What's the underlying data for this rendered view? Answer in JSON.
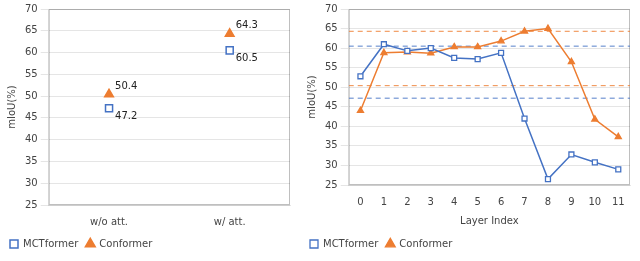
{
  "chart_data": [
    {
      "type": "scatter",
      "categories": [
        "w/o att.",
        "w/ att."
      ],
      "series": [
        {
          "name": "MCTformer",
          "color": "#4472c4",
          "marker": "open-square",
          "values": [
            47.2,
            60.5
          ]
        },
        {
          "name": "Conformer",
          "color": "#ed7d31",
          "marker": "triangle",
          "values": [
            50.4,
            64.3
          ]
        }
      ],
      "ylabel": "mIoU(%)",
      "ylim": [
        25,
        70
      ],
      "yticks": [
        25,
        30,
        35,
        40,
        45,
        50,
        55,
        60,
        65,
        70
      ],
      "grid": true,
      "legend": "lower left",
      "data_labels": true
    },
    {
      "type": "line",
      "x": [
        0,
        1,
        2,
        3,
        4,
        5,
        6,
        7,
        8,
        9,
        10,
        11
      ],
      "series": [
        {
          "name": "MCTformer",
          "color": "#4472c4",
          "marker": "open-square",
          "values": [
            52.8,
            61.0,
            59.3,
            60.0,
            57.5,
            57.2,
            58.8,
            42.0,
            26.5,
            32.8,
            30.8,
            29.0
          ]
        },
        {
          "name": "Conformer",
          "color": "#ed7d31",
          "marker": "triangle",
          "values": [
            44.0,
            58.8,
            59.0,
            58.7,
            60.3,
            60.3,
            61.8,
            64.3,
            65.0,
            56.5,
            41.8,
            37.3
          ]
        }
      ],
      "xlabel": "Layer Index",
      "ylabel": "mIoU(%)",
      "xlim": [
        -0.5,
        11.5
      ],
      "xticks": [
        0,
        1,
        2,
        3,
        4,
        5,
        6,
        7,
        8,
        9,
        10,
        11
      ],
      "ylim": [
        25,
        70
      ],
      "yticks": [
        25,
        30,
        35,
        40,
        45,
        50,
        55,
        60,
        65,
        70
      ],
      "grid": true,
      "legend": "lower left",
      "reference_lines": [
        {
          "y": 47.2,
          "color": "#4472c4",
          "line_style": "dashed"
        },
        {
          "y": 60.5,
          "color": "#4472c4",
          "line_style": "dashed"
        },
        {
          "y": 50.4,
          "color": "#ed7d31",
          "line_style": "dashed"
        },
        {
          "y": 64.3,
          "color": "#ed7d31",
          "line_style": "dashed"
        }
      ]
    }
  ]
}
